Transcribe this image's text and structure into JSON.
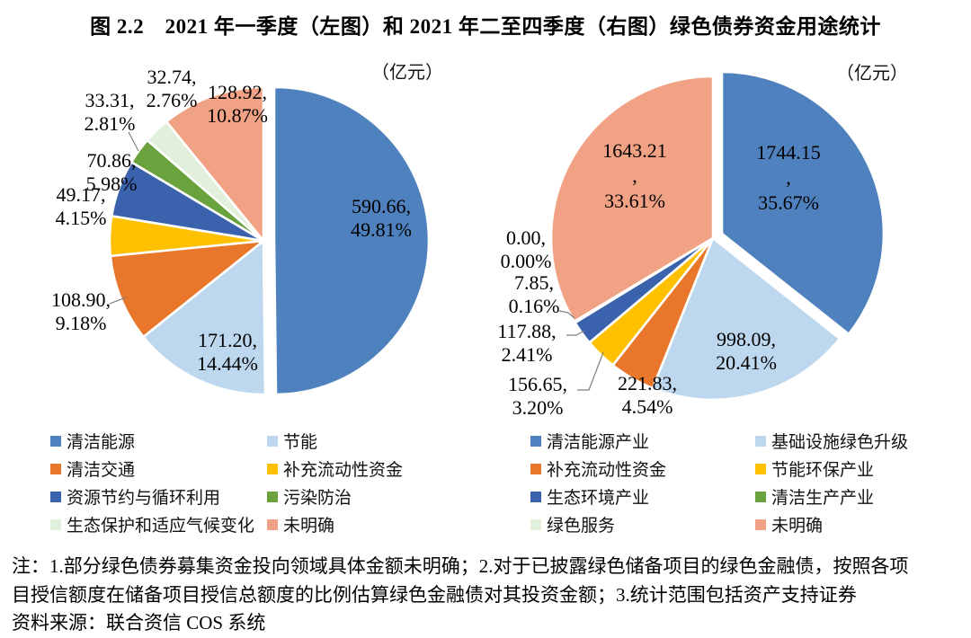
{
  "figure": {
    "title": "图 2.2　2021 年一季度（左图）和 2021 年二至四季度（右图）绿色债券资金用途统计",
    "unit_label": "（亿元）"
  },
  "chart_data": [
    {
      "type": "pie",
      "name": "2021年一季度绿色债券资金用途",
      "unit": "亿元",
      "categories": [
        "清洁能源",
        "节能",
        "清洁交通",
        "补充流动性资金",
        "资源节约与循环利用",
        "污染防治",
        "生态保护和适应气候变化",
        "未明确"
      ],
      "values": [
        590.66,
        171.2,
        108.9,
        49.17,
        70.86,
        33.31,
        32.74,
        128.92
      ],
      "percents": [
        49.81,
        14.44,
        9.18,
        4.15,
        5.98,
        2.81,
        2.76,
        10.87
      ],
      "colors": [
        "#4e81bd",
        "#bdd7ee",
        "#e8762b",
        "#ffc000",
        "#3a62ad",
        "#6aa33d",
        "#e2efda",
        "#f1a285"
      ],
      "legend_position": "bottom",
      "label_format": "value, percent"
    },
    {
      "type": "pie",
      "name": "2021年二至四季度绿色债券资金用途",
      "unit": "亿元",
      "categories": [
        "清洁能源产业",
        "基础设施绿色升级",
        "补充流动性资金",
        "节能环保产业",
        "生态环境产业",
        "清洁生产产业",
        "绿色服务",
        "未明确"
      ],
      "values": [
        1744.15,
        998.09,
        221.83,
        156.65,
        117.88,
        7.85,
        0.0,
        1643.21
      ],
      "percents": [
        35.67,
        20.41,
        4.54,
        3.2,
        2.41,
        0.16,
        0.0,
        33.61
      ],
      "colors": [
        "#4e81bd",
        "#bdd7ee",
        "#e8762b",
        "#ffc000",
        "#3a62ad",
        "#6aa33d",
        "#e2efda",
        "#f1a285"
      ],
      "legend_position": "bottom",
      "label_format": "value, percent"
    }
  ],
  "notes": [
    "注：1.部分绿色债券募集资金投向领域具体金额未明确；2.对于已披露绿色储备项目的绿色金融债，按照各项",
    "目授信额度在储备项目授信总额度的比例估算绿色金融债对其投资金额；3.统计范围包括资产支持证券",
    "资料来源：联合资信 COS 系统"
  ]
}
